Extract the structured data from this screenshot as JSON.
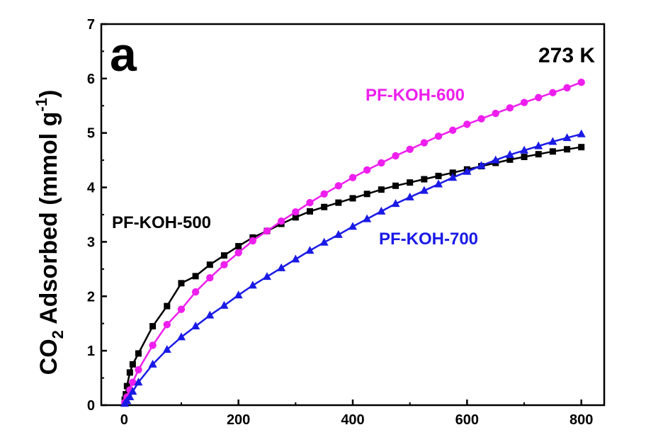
{
  "chart_data": {
    "type": "line",
    "panel_label": "a",
    "annotation": "273 K",
    "ylabel": "CO2 Adsorbed (mmol g-1)",
    "ylabel_parts": {
      "main": "CO",
      "sub": "2",
      "rest": " Adsorbed (mmol g",
      "sup": "-1",
      "end": ")"
    },
    "xlabel": "",
    "xlim": [
      -40,
      840
    ],
    "ylim": [
      0,
      7
    ],
    "xticks": [
      0,
      200,
      400,
      600,
      800
    ],
    "yticks": [
      0,
      1,
      2,
      3,
      4,
      5,
      6,
      7
    ],
    "grid": false,
    "series": [
      {
        "name": "PF-KOH-500",
        "color": "#000000",
        "marker": "square",
        "x": [
          1,
          3,
          5,
          10,
          15,
          25,
          50,
          75,
          100,
          125,
          150,
          175,
          200,
          225,
          250,
          275,
          300,
          325,
          350,
          375,
          400,
          425,
          450,
          475,
          500,
          525,
          550,
          575,
          600,
          625,
          650,
          675,
          700,
          725,
          750,
          775,
          800
        ],
        "y": [
          0.1,
          0.2,
          0.35,
          0.6,
          0.75,
          0.95,
          1.45,
          1.82,
          2.24,
          2.37,
          2.58,
          2.75,
          2.92,
          3.08,
          3.2,
          3.33,
          3.45,
          3.56,
          3.64,
          3.72,
          3.8,
          3.88,
          3.96,
          4.03,
          4.09,
          4.15,
          4.21,
          4.27,
          4.33,
          4.39,
          4.45,
          4.51,
          4.56,
          4.61,
          4.66,
          4.7,
          4.74
        ]
      },
      {
        "name": "PF-KOH-600",
        "color": "#ee1fee",
        "marker": "circle",
        "x": [
          1,
          5,
          10,
          15,
          25,
          50,
          75,
          100,
          125,
          150,
          175,
          200,
          225,
          250,
          275,
          300,
          325,
          350,
          375,
          400,
          425,
          450,
          475,
          500,
          525,
          550,
          575,
          600,
          625,
          650,
          675,
          700,
          725,
          750,
          775,
          800
        ],
        "y": [
          0.05,
          0.15,
          0.28,
          0.42,
          0.65,
          1.1,
          1.48,
          1.76,
          2.08,
          2.34,
          2.58,
          2.8,
          3.02,
          3.2,
          3.38,
          3.55,
          3.72,
          3.88,
          4.03,
          4.18,
          4.32,
          4.45,
          4.58,
          4.7,
          4.82,
          4.94,
          5.05,
          5.16,
          5.26,
          5.36,
          5.46,
          5.56,
          5.65,
          5.74,
          5.83,
          5.93
        ]
      },
      {
        "name": "PF-KOH-700",
        "color": "#1a1ae6",
        "marker": "triangle",
        "x": [
          1,
          5,
          10,
          15,
          25,
          50,
          75,
          100,
          125,
          150,
          175,
          200,
          225,
          250,
          275,
          300,
          325,
          350,
          375,
          400,
          425,
          450,
          475,
          500,
          525,
          550,
          575,
          600,
          625,
          650,
          675,
          700,
          725,
          750,
          775,
          800
        ],
        "y": [
          0.03,
          0.08,
          0.15,
          0.25,
          0.42,
          0.75,
          1.02,
          1.25,
          1.45,
          1.65,
          1.83,
          2.02,
          2.2,
          2.36,
          2.52,
          2.68,
          2.84,
          2.99,
          3.13,
          3.28,
          3.42,
          3.56,
          3.7,
          3.82,
          3.94,
          4.06,
          4.18,
          4.29,
          4.4,
          4.5,
          4.6,
          4.68,
          4.76,
          4.84,
          4.91,
          4.98
        ]
      }
    ]
  }
}
